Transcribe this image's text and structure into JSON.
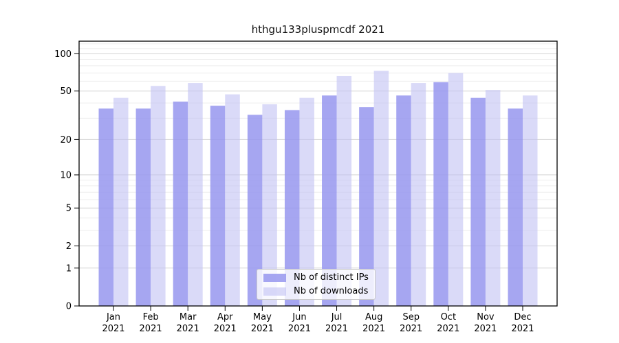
{
  "chart_data": {
    "type": "bar",
    "title": "hthgu133pluspmcdf 2021",
    "subtitle": "",
    "xlabel": "",
    "ylabel": "",
    "scale": "log10(1+v)",
    "grid": "on",
    "year": "2021",
    "categories": [
      "Jan",
      "Feb",
      "Mar",
      "Apr",
      "May",
      "Jun",
      "Jul",
      "Aug",
      "Sep",
      "Oct",
      "Nov",
      "Dec"
    ],
    "series": [
      {
        "name": "Nb of distinct IPs",
        "key": "distinct-ips",
        "color": "#9696ef",
        "opacity": 0.85,
        "values": [
          36,
          36,
          41,
          38,
          32,
          35,
          46,
          37,
          46,
          59,
          44,
          36
        ]
      },
      {
        "name": "Nb of downloads",
        "key": "downloads",
        "color": "#c1c1f3",
        "opacity": 0.6,
        "values": [
          44,
          55,
          58,
          47,
          39,
          44,
          66,
          73,
          58,
          70,
          51,
          46
        ]
      }
    ],
    "y_major_ticks": [
      0,
      1,
      2,
      5,
      10,
      20,
      50,
      100
    ],
    "y_minor_gridlines": [
      3,
      4,
      6,
      7,
      8,
      9,
      30,
      40,
      60,
      70,
      80,
      90,
      110,
      120
    ],
    "ylim": [
      0,
      126
    ],
    "legend_position": "lower center",
    "colors": {
      "axis": "#000000",
      "text": "#000000",
      "grid_major": "#d2d2d2",
      "grid_minor": "#ededed",
      "background": "#ffffff"
    }
  }
}
